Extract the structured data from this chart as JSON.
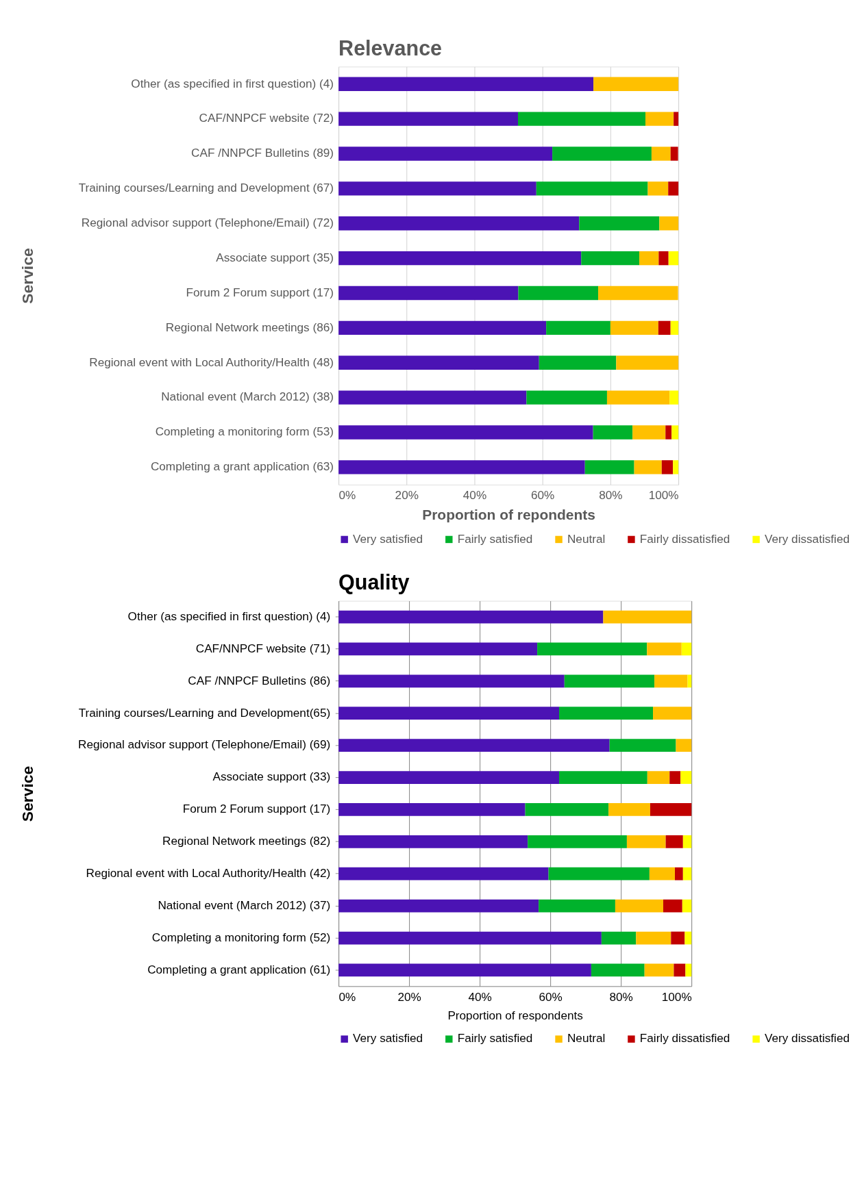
{
  "chart_data": [
    {
      "type": "bar",
      "title": "Relevance",
      "xlabel": "Proportion of repondents",
      "ylabel": "Service",
      "stacked": true,
      "orientation": "horizontal",
      "grid": "x",
      "legend": "bottom",
      "categories": [
        "Other (as specified in first question) (4)",
        "CAF/NNPCF website (72)",
        "CAF /NNPCF Bulletins (89)",
        "Training courses/Learning and Development (67)",
        "Regional advisor support (Telephone/Email) (72)",
        "Associate support (35)",
        "Forum 2 Forum support (17)",
        "Regional Network meetings (86)",
        "Regional event with Local Authority/Health (48)",
        "National event (March 2012) (38)",
        "Completing a monitoring form (53)",
        "Completing a grant application (63)"
      ],
      "xlim": [
        0,
        100
      ],
      "xticks": [
        {
          "value": 0,
          "label": "0%"
        },
        {
          "value": 20,
          "label": "20%"
        },
        {
          "value": 40,
          "label": "40%"
        },
        {
          "value": 60,
          "label": "60%"
        },
        {
          "value": 80,
          "label": "80%"
        },
        {
          "value": 100,
          "label": "100%"
        }
      ],
      "series": [
        {
          "name": "Very satisfied",
          "color": "#4b13b4",
          "values": [
            75,
            52.8,
            62.9,
            58.2,
            70.8,
            71.4,
            52.9,
            61.1,
            59.0,
            55.3,
            74.9,
            72.5
          ]
        },
        {
          "name": "Fairly satisfied",
          "color": "#00b22c",
          "values": [
            0,
            37.5,
            29.2,
            32.8,
            23.6,
            17.1,
            23.5,
            18.9,
            22.7,
            23.7,
            11.6,
            14.5
          ]
        },
        {
          "name": "Neutral",
          "color": "#ffc000",
          "values": [
            25,
            8.3,
            5.6,
            6.0,
            5.6,
            5.7,
            23.5,
            14.1,
            18.3,
            18.4,
            9.7,
            8.1
          ]
        },
        {
          "name": "Fairly dissatisfied",
          "color": "#c00000",
          "values": [
            0,
            1.4,
            2.2,
            3.0,
            0,
            2.9,
            0,
            3.6,
            0,
            0,
            1.8,
            3.3
          ]
        },
        {
          "name": "Very dissatisfied",
          "color": "#ffff00",
          "values": [
            0,
            0,
            0,
            0,
            0,
            2.9,
            0,
            2.3,
            0,
            2.6,
            2.0,
            1.6
          ]
        }
      ]
    },
    {
      "type": "bar",
      "title": "Quality",
      "xlabel": "Proportion of respondents",
      "ylabel": "Service",
      "stacked": true,
      "orientation": "horizontal",
      "grid": "x",
      "legend": "bottom",
      "categories": [
        "Other (as specified in first question) (4)",
        "CAF/NNPCF website (71)",
        "CAF /NNPCF Bulletins (86)",
        "Training courses/Learning and Development(65)",
        "Regional advisor support (Telephone/Email) (69)",
        "Associate support (33)",
        "Forum 2 Forum support (17)",
        "Regional Network meetings (82)",
        "Regional event with Local Authority/Health (42)",
        "National event (March 2012) (37)",
        "Completing a monitoring form (52)",
        "Completing a grant application (61)"
      ],
      "xlim": [
        0,
        100
      ],
      "xticks": [
        {
          "value": 0,
          "label": "0%"
        },
        {
          "value": 20,
          "label": "20%"
        },
        {
          "value": 40,
          "label": "40%"
        },
        {
          "value": 60,
          "label": "60%"
        },
        {
          "value": 80,
          "label": "80%"
        },
        {
          "value": 100,
          "label": "100%"
        }
      ],
      "series": [
        {
          "name": "Very satisfied",
          "color": "#4b13b4",
          "values": [
            75.0,
            56.3,
            64.0,
            62.5,
            76.8,
            62.5,
            52.9,
            53.6,
            59.5,
            56.7,
            74.5,
            71.6
          ]
        },
        {
          "name": "Fairly satisfied",
          "color": "#00b22c",
          "values": [
            0,
            31.1,
            25.5,
            26.6,
            18.8,
            25.0,
            23.6,
            28.1,
            28.6,
            21.7,
            9.8,
            15.1
          ]
        },
        {
          "name": "Neutral",
          "color": "#ffc000",
          "values": [
            25.0,
            9.8,
            9.4,
            10.9,
            4.4,
            6.3,
            11.8,
            11.0,
            7.2,
            13.6,
            9.9,
            8.3
          ]
        },
        {
          "name": "Fairly dissatisfied",
          "color": "#c00000",
          "values": [
            0,
            0,
            0,
            0,
            0,
            3.1,
            11.7,
            4.9,
            2.3,
            5.4,
            3.9,
            3.3
          ]
        },
        {
          "name": "Very dissatisfied",
          "color": "#ffff00",
          "values": [
            0,
            2.8,
            1.1,
            0,
            0,
            3.1,
            0,
            2.4,
            2.4,
            2.6,
            1.9,
            1.7
          ]
        }
      ]
    }
  ]
}
